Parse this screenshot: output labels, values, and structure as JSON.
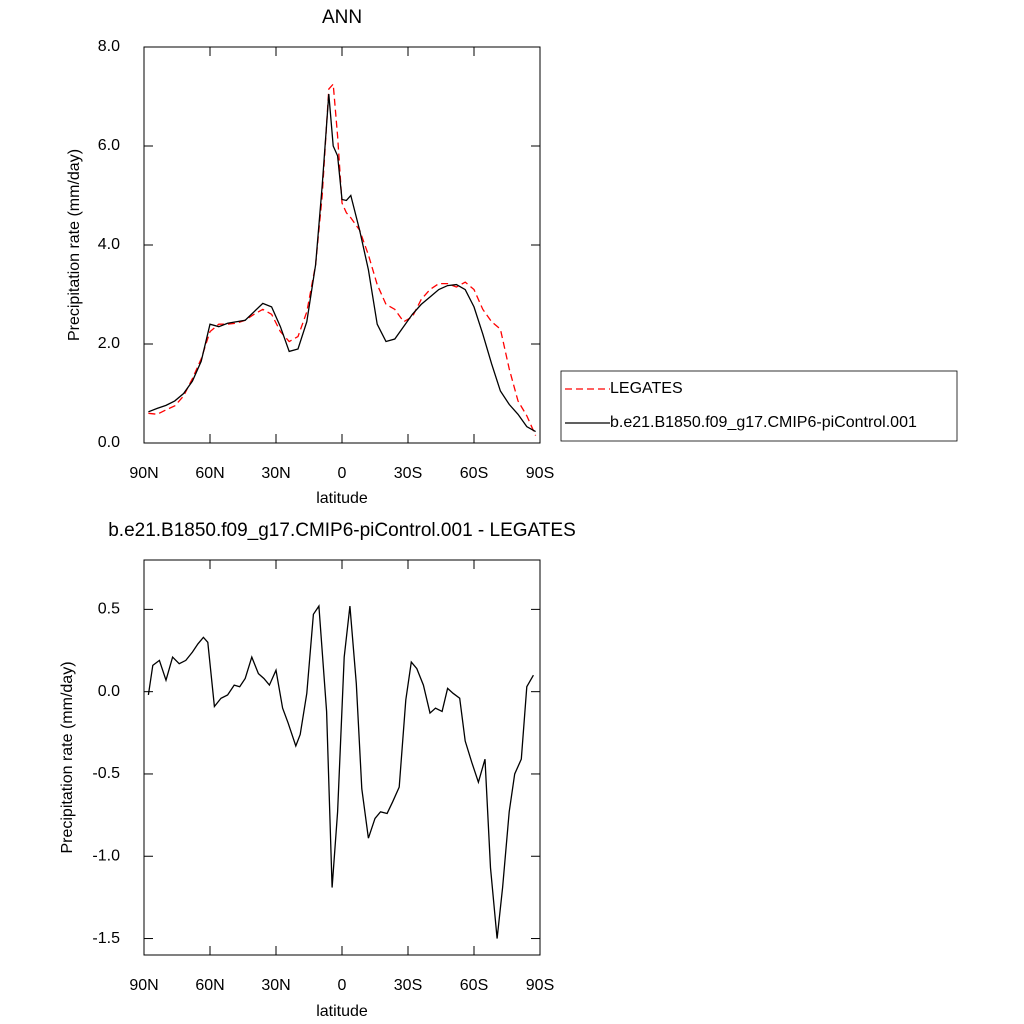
{
  "chart_data": [
    {
      "type": "line",
      "title": "ANN",
      "xlabel": "latitude",
      "ylabel": "Precipitation rate (mm/day)",
      "x": [
        88,
        84,
        80,
        76,
        72,
        68,
        64,
        60,
        56,
        52,
        48,
        44,
        40,
        36,
        32,
        28,
        24,
        20,
        16,
        12,
        9,
        6,
        4,
        2,
        0,
        -2,
        -4,
        -8,
        -12,
        -16,
        -20,
        -24,
        -28,
        -32,
        -36,
        -40,
        -44,
        -48,
        -52,
        -56,
        -60,
        -64,
        -68,
        -72,
        -76,
        -80,
        -84,
        -88
      ],
      "series": [
        {
          "name": "LEGATES",
          "color": "#ff0000",
          "line_style": "dashed",
          "values": [
            0.6,
            0.58,
            0.67,
            0.75,
            0.95,
            1.3,
            1.7,
            2.25,
            2.4,
            2.4,
            2.42,
            2.48,
            2.6,
            2.7,
            2.6,
            2.25,
            2.05,
            2.15,
            2.65,
            3.6,
            5.0,
            7.15,
            7.25,
            6.2,
            4.85,
            4.65,
            4.55,
            4.3,
            3.8,
            3.2,
            2.8,
            2.7,
            2.45,
            2.55,
            2.9,
            3.1,
            3.22,
            3.22,
            3.15,
            3.25,
            3.1,
            2.7,
            2.45,
            2.3,
            1.5,
            0.85,
            0.55,
            0.15
          ]
        },
        {
          "name": "b.e21.B1850.f09_g17.CMIP6-piControl.001",
          "color": "#000000",
          "line_style": "solid",
          "values": [
            0.63,
            0.7,
            0.76,
            0.85,
            1.0,
            1.25,
            1.65,
            2.4,
            2.35,
            2.42,
            2.45,
            2.48,
            2.65,
            2.82,
            2.75,
            2.35,
            1.85,
            1.9,
            2.45,
            3.6,
            5.2,
            7.05,
            6.0,
            5.8,
            4.92,
            4.9,
            5.0,
            4.3,
            3.5,
            2.4,
            2.05,
            2.1,
            2.35,
            2.6,
            2.8,
            2.95,
            3.1,
            3.18,
            3.2,
            3.1,
            2.75,
            2.2,
            1.6,
            1.05,
            0.78,
            0.58,
            0.33,
            0.23
          ]
        }
      ],
      "xlim": [
        90,
        -90
      ],
      "xticks": [
        {
          "value": 90,
          "label": "90N"
        },
        {
          "value": 60,
          "label": "60N"
        },
        {
          "value": 30,
          "label": "30N"
        },
        0,
        {
          "value": -30,
          "label": "30S"
        },
        {
          "value": -60,
          "label": "60S"
        },
        {
          "value": -90,
          "label": "90S"
        }
      ],
      "ylim": [
        0,
        8
      ],
      "yticks": [
        {
          "value": 0,
          "label": "0.0"
        },
        {
          "value": 2,
          "label": "2.0"
        },
        {
          "value": 4,
          "label": "4.0"
        },
        {
          "value": 6,
          "label": "6.0"
        },
        {
          "value": 8,
          "label": "8.0"
        }
      ],
      "legend": "right"
    },
    {
      "type": "line",
      "title": "b.e21.B1850.f09_g17.CMIP6-piControl.001 - LEGATES",
      "xlabel": "latitude",
      "ylabel": "Precipitation rate (mm/day)",
      "x": [
        88,
        86,
        83,
        80,
        77,
        74,
        71,
        68,
        65.5,
        63,
        61,
        58,
        55,
        52,
        49,
        46.5,
        44,
        41,
        38,
        35.5,
        33,
        30,
        27,
        24.5,
        21,
        19,
        16,
        13,
        10.5,
        7,
        4.5,
        2,
        -1,
        -3.6,
        -6.5,
        -9,
        -12,
        -15,
        -17.5,
        -20.5,
        -23,
        -26,
        -29,
        -31.5,
        -34,
        -37,
        -40,
        -42.5,
        -45.5,
        -48,
        -50.5,
        -53.5,
        -56,
        -59,
        -62,
        -65,
        -67.5,
        -70.5,
        -73,
        -76,
        -78.5,
        -81.5,
        -84,
        -87
      ],
      "values": [
        -0.02,
        0.16,
        0.19,
        0.07,
        0.21,
        0.17,
        0.19,
        0.24,
        0.29,
        0.33,
        0.3,
        -0.09,
        -0.04,
        -0.02,
        0.04,
        0.03,
        0.08,
        0.21,
        0.11,
        0.08,
        0.04,
        0.13,
        -0.1,
        -0.19,
        -0.33,
        -0.26,
        -0.01,
        0.47,
        0.52,
        -0.12,
        -1.19,
        -0.73,
        0.21,
        0.52,
        0.05,
        -0.59,
        -0.89,
        -0.77,
        -0.73,
        -0.74,
        -0.67,
        -0.58,
        -0.05,
        0.18,
        0.14,
        0.04,
        -0.13,
        -0.1,
        -0.12,
        0.02,
        -0.01,
        -0.04,
        -0.3,
        -0.43,
        -0.55,
        -0.41,
        -1.07,
        -1.5,
        -1.19,
        -0.73,
        -0.5,
        -0.41,
        0.03,
        0.1
      ],
      "color": "#000000",
      "xlim": [
        90,
        -90
      ],
      "xticks": [
        {
          "value": 90,
          "label": "90N"
        },
        {
          "value": 60,
          "label": "60N"
        },
        {
          "value": 30,
          "label": "30N"
        },
        0,
        {
          "value": -30,
          "label": "30S"
        },
        {
          "value": -60,
          "label": "60S"
        },
        {
          "value": -90,
          "label": "90S"
        }
      ],
      "ylim": [
        -1.6,
        0.8
      ],
      "yticks": [
        {
          "value": -1.5,
          "label": "-1.5"
        },
        {
          "value": -1,
          "label": "-1.0"
        },
        -0.5,
        {
          "value": 0,
          "label": "0.0"
        },
        0.5
      ]
    }
  ]
}
